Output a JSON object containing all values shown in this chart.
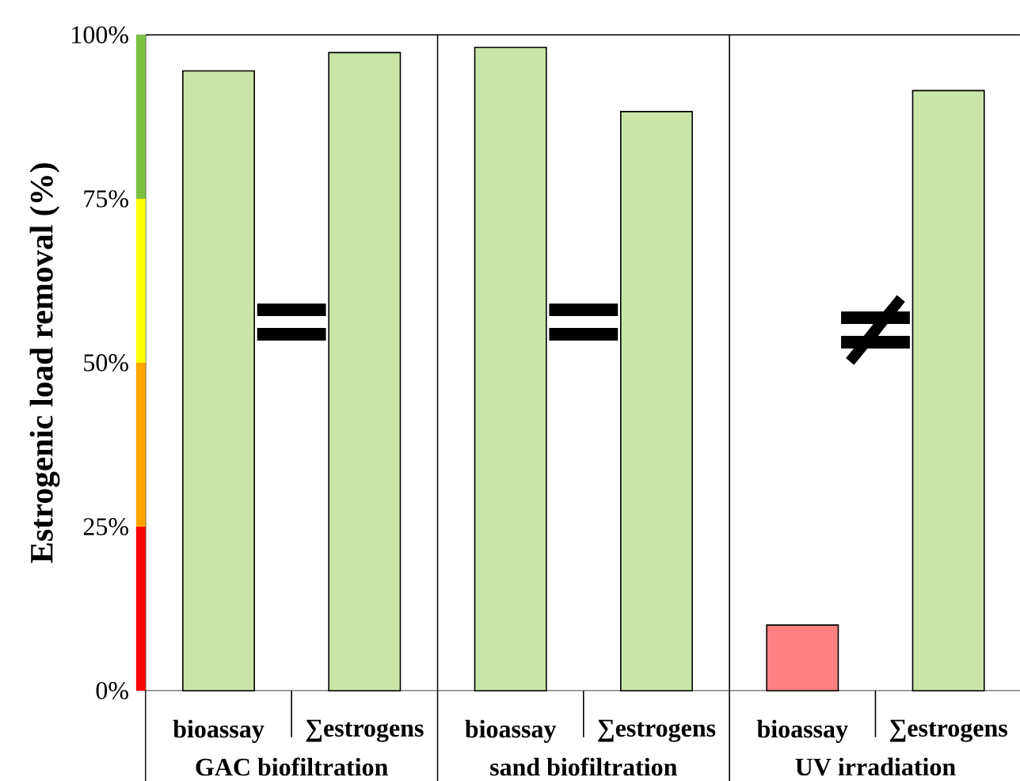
{
  "chart_data": {
    "type": "bar",
    "ylabel": "Estrogenic load removal (%)",
    "categories": [
      "bioassay",
      "∑estrogens",
      "bioassay",
      "∑estrogens",
      "bioassay",
      "∑estrogens"
    ],
    "values": [
      94.5,
      97.3,
      98.1,
      88.3,
      10,
      91.5
    ],
    "colors": [
      "#c9e6a8",
      "#c9e6a8",
      "#c9e6a8",
      "#c9e6a8",
      "#ff8080",
      "#c9e6a8"
    ],
    "ylim": [
      0,
      100
    ],
    "yticks": [
      {
        "value": 0,
        "label": "0%"
      },
      {
        "value": 25,
        "label": "25%"
      },
      {
        "value": 50,
        "label": "50%"
      },
      {
        "value": 75,
        "label": "75%"
      },
      {
        "value": 100,
        "label": "100%"
      }
    ],
    "annotations": [
      "=",
      "=",
      "≠",
      "GAC biofiltration",
      "sand biofiltration",
      "UV irradiation"
    ],
    "grid": false
  }
}
